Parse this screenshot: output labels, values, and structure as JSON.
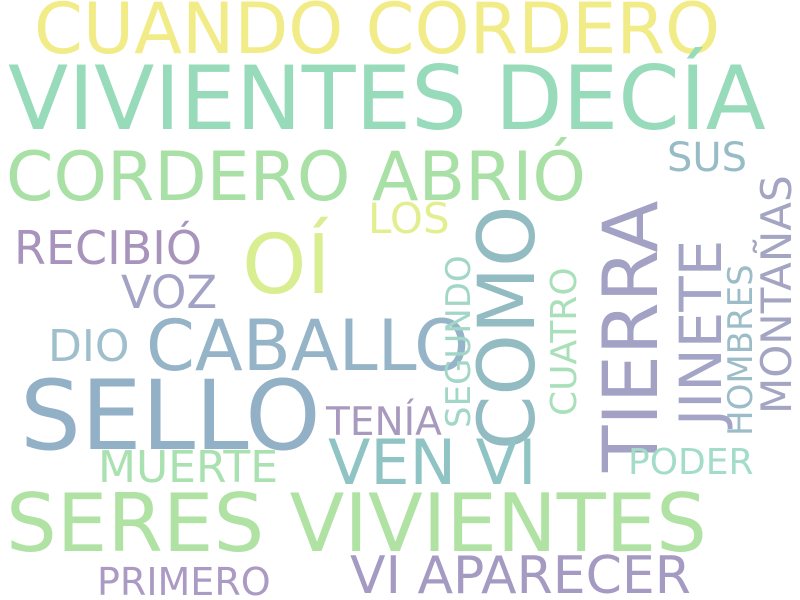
{
  "word_cloud": {
    "words": [
      {
        "text": "CUANDO CORDERO",
        "color": "#f2ec88"
      },
      {
        "text": "VIVIENTES DECÍA",
        "color": "#97dbbb"
      },
      {
        "text": "CORDERO ABRIÓ",
        "color": "#a8e0a6"
      },
      {
        "text": "SUS",
        "color": "#97bcc6"
      },
      {
        "text": "LOS",
        "color": "#e3ef8e"
      },
      {
        "text": "RECIBIÓ",
        "color": "#a893bc"
      },
      {
        "text": "OÍ",
        "color": "#d9ee91"
      },
      {
        "text": "VOZ",
        "color": "#a2a2c4"
      },
      {
        "text": "TIERRA",
        "color": "#a3a1c4"
      },
      {
        "text": "JINETE",
        "color": "#a4a4c6"
      },
      {
        "text": "COMO",
        "color": "#92bcc2"
      },
      {
        "text": "MONTAÑAS",
        "color": "#a4a4c3"
      },
      {
        "text": "HOMBRES",
        "color": "#9cbcc8"
      },
      {
        "text": "DIO",
        "color": "#9fbfcc"
      },
      {
        "text": "CABALLO",
        "color": "#95b4c7"
      },
      {
        "text": "SEGUNDO",
        "color": "#a2d7c7"
      },
      {
        "text": "CUATRO",
        "color": "#a9e0ba"
      },
      {
        "text": "SELLO",
        "color": "#92b0c6"
      },
      {
        "text": "TENÍA",
        "color": "#a89abe"
      },
      {
        "text": "VEN VI",
        "color": "#8fc3c4"
      },
      {
        "text": "MUERTE",
        "color": "#a9e1b1"
      },
      {
        "text": "PODER",
        "color": "#a3ddc9"
      },
      {
        "text": "SERES VIVIENTES",
        "color": "#b0e2a4"
      },
      {
        "text": "PRIMERO",
        "color": "#ab9ac3"
      },
      {
        "text": "VI APARECER",
        "color": "#a59bc2"
      }
    ]
  }
}
